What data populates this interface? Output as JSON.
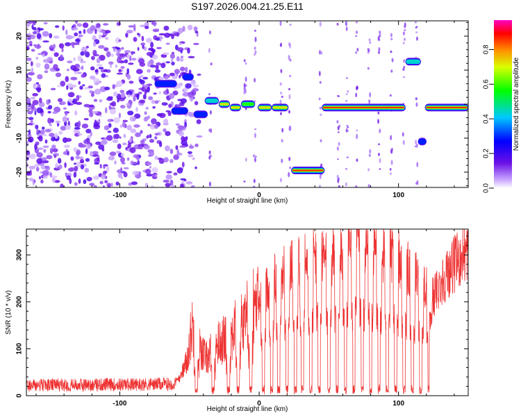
{
  "title": "S197.2026.004.21.25.E11",
  "colors": {
    "line": "#ee3333",
    "axis": "#000000",
    "noise": "#9b5de5",
    "noise_dark": "#5a1ad6"
  },
  "chart_data": [
    {
      "type": "heatmap",
      "xlabel": "Height of straight line (km)",
      "ylabel": "Frequency (Hz)",
      "xlim": [
        -167,
        150
      ],
      "ylim": [
        -24.5,
        24.5
      ],
      "xticks": [
        -100,
        0,
        100
      ],
      "yticks": [
        -20,
        -10,
        0,
        10,
        20
      ],
      "colorbar": {
        "label": "Normalized spectral amplitude",
        "ticks": [
          "0.0",
          "0.2",
          "0.4",
          "0.6",
          "0.8"
        ],
        "tick_values": [
          0.0,
          0.2,
          0.4,
          0.6,
          0.8
        ],
        "range": [
          0,
          0.97
        ]
      },
      "noise_region_x": [
        -167,
        -55
      ],
      "features": [
        {
          "x0": -74,
          "x1": -60,
          "y": 6,
          "amp": 0.35
        },
        {
          "x0": -62,
          "x1": -52,
          "y": -2,
          "amp": 0.35
        },
        {
          "x0": -54,
          "x1": -48,
          "y": 8,
          "amp": 0.3
        },
        {
          "x0": -46,
          "x1": -38,
          "y": -3,
          "amp": 0.3
        },
        {
          "x0": -38,
          "x1": -30,
          "y": 1,
          "amp": 0.55
        },
        {
          "x0": -28,
          "x1": -22,
          "y": 0,
          "amp": 0.75
        },
        {
          "x0": -20,
          "x1": -14,
          "y": -1,
          "amp": 0.8
        },
        {
          "x0": -12,
          "x1": -4,
          "y": 0,
          "amp": 0.6
        },
        {
          "x0": 0,
          "x1": 8,
          "y": -1,
          "amp": 0.85
        },
        {
          "x0": 10,
          "x1": 20,
          "y": -1,
          "amp": 0.85
        },
        {
          "x0": 24,
          "x1": 46,
          "y": -19.5,
          "amp": 0.95
        },
        {
          "x0": 46,
          "x1": 104,
          "y": -1,
          "amp": 0.95
        },
        {
          "x0": 106,
          "x1": 115,
          "y": 12.5,
          "amp": 0.5
        },
        {
          "x0": 115,
          "x1": 119,
          "y": -11,
          "amp": 0.3
        },
        {
          "x0": 120,
          "x1": 149,
          "y": -1,
          "amp": 0.97
        }
      ]
    },
    {
      "type": "line",
      "xlabel": "Height of straight line (km)",
      "ylabel": "SNR (10 * v/v)",
      "xlim": [
        -167,
        150
      ],
      "ylim": [
        0,
        355
      ],
      "xticks": [
        -100,
        0,
        100
      ],
      "yticks": [
        0,
        100,
        200,
        300
      ],
      "envelope": {
        "x": [
          -167,
          -60,
          -52,
          -48,
          -44,
          -38,
          -30,
          -20,
          -10,
          0,
          10,
          20,
          30,
          40,
          50,
          60,
          70,
          80,
          90,
          100,
          110,
          120,
          125,
          130,
          140,
          150
        ],
        "y": [
          22,
          25,
          70,
          150,
          110,
          80,
          110,
          130,
          170,
          200,
          250,
          270,
          285,
          300,
          290,
          300,
          320,
          310,
          300,
          290,
          260,
          230,
          210,
          240,
          280,
          310
        ]
      },
      "dropouts_x": [
        -45,
        -33,
        -22,
        -15,
        -6,
        3,
        9,
        14,
        20,
        26,
        31,
        37,
        43,
        50,
        56,
        62,
        68,
        74,
        80,
        86,
        92,
        98,
        104,
        110,
        116,
        122
      ]
    }
  ]
}
